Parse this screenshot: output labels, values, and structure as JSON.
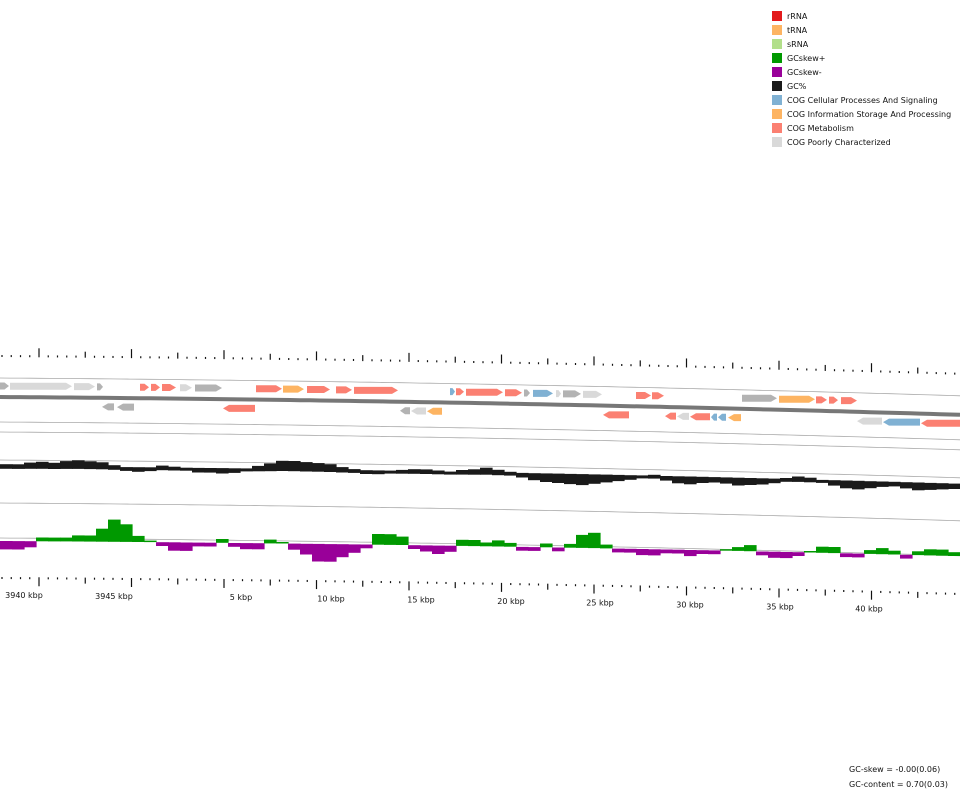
{
  "legend": [
    {
      "label": "rRNA",
      "color": "#e31a1c"
    },
    {
      "label": "tRNA",
      "color": "#fdb462"
    },
    {
      "label": "sRNA",
      "color": "#b2df8a"
    },
    {
      "label": "GCskew+",
      "color": "#009900"
    },
    {
      "label": "GCskew-",
      "color": "#990099"
    },
    {
      "label": "GC%",
      "color": "#1a1a1a"
    },
    {
      "label": "COG Cellular Processes And Signaling",
      "color": "#80b1d3"
    },
    {
      "label": "COG Information Storage And Processing",
      "color": "#fdb462"
    },
    {
      "label": "COG Metabolism",
      "color": "#fb8072"
    },
    {
      "label": "COG Poorly Characterized",
      "color": "#d9d9d9"
    }
  ],
  "position_labels": [
    "3940 kbp",
    "3945 kbp",
    "5 kbp",
    "10 kbp",
    "15 kbp",
    "20 kbp",
    "25 kbp",
    "30 kbp",
    "35 kbp",
    "40 kbp"
  ],
  "stats": {
    "gc_skew": "GC-skew = -0.00(0.06)",
    "gc_content": "GC-content = 0.70(0.03)"
  },
  "colors": {
    "backbone": "#777777",
    "track_line": "#aaaaaa",
    "gc_content": "#1a1a1a",
    "skew_pos": "#009900",
    "skew_neg": "#990099",
    "cog_metabolism": "#fb8072",
    "cog_info": "#fdb462",
    "cog_cellular": "#80b1d3",
    "cog_poor": "#d9d9d9",
    "unassigned": "#b3b3b3"
  }
}
